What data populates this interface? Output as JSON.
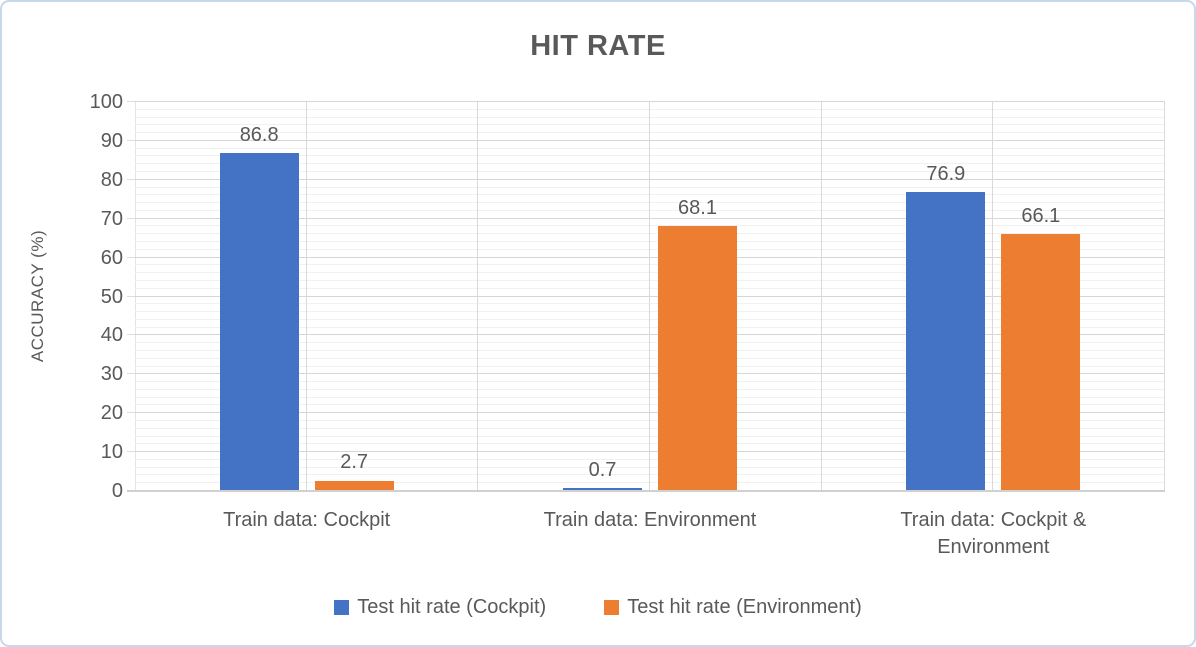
{
  "chart_data": {
    "type": "bar",
    "title": "HIT RATE",
    "xlabel": "",
    "ylabel": "ACCURACY (%)",
    "categories": [
      "Train data: Cockpit",
      "Train data: Environment",
      "Train data: Cockpit & Environment"
    ],
    "series": [
      {
        "name": "Test hit rate (Cockpit)",
        "color": "#4472C4",
        "values": [
          86.8,
          0.7,
          76.9
        ]
      },
      {
        "name": "Test hit rate (Environment)",
        "color": "#ED7D31",
        "values": [
          2.7,
          68.1,
          66.1
        ]
      }
    ],
    "data_labels": [
      [
        "86.8",
        "0.7",
        "76.9"
      ],
      [
        "2.7",
        "68.1",
        "66.1"
      ]
    ],
    "ylim": [
      0,
      100
    ],
    "y_major_step": 10,
    "y_minor_step": 2,
    "y_ticks": [
      "0",
      "10",
      "20",
      "30",
      "40",
      "50",
      "60",
      "70",
      "80",
      "90",
      "100"
    ],
    "vertical_divisions": 6,
    "grid": true,
    "legend_position": "bottom"
  },
  "colors": {
    "text": "#595959",
    "grid_major": "#D6D6D6",
    "grid_minor": "#F1F1F1",
    "axis_line": "#E3E3E3",
    "baseline": "#D0D0D0",
    "frame_border": "#C9D7EB",
    "series_blue": "#4472C4",
    "series_orange": "#ED7D31"
  }
}
